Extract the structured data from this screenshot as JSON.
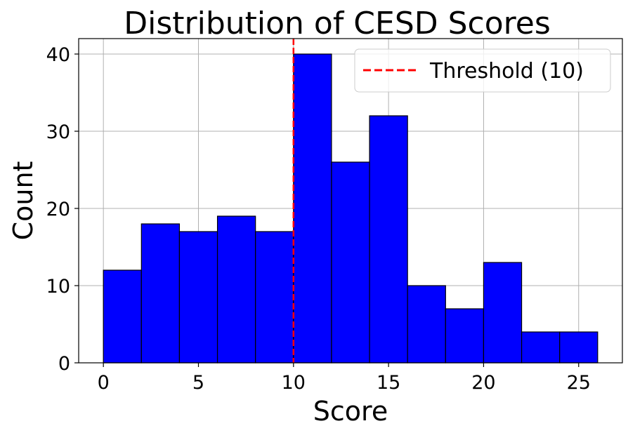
{
  "chart_data": {
    "type": "bar",
    "title": "Distribution of CESD Scores",
    "xlabel": "Score",
    "ylabel": "Count",
    "bin_edges": [
      0,
      2,
      4,
      6,
      8,
      10,
      12,
      14,
      16,
      18,
      20,
      22,
      24,
      26
    ],
    "values": [
      12,
      18,
      17,
      19,
      17,
      40,
      26,
      32,
      10,
      7,
      13,
      4,
      4
    ],
    "xlim": [
      -1.3,
      27.3
    ],
    "ylim": [
      0,
      42
    ],
    "xticks": [
      0,
      5,
      10,
      15,
      20,
      25
    ],
    "yticks": [
      0,
      10,
      20,
      30,
      40
    ],
    "bar_color": "#0000ff",
    "edge_color": "#000000",
    "grid": true,
    "threshold": {
      "value": 10,
      "label": "Threshold (10)",
      "color": "#ff0000",
      "style": "dashed"
    },
    "legend": {
      "position": "top-right",
      "entries": [
        "Threshold (10)"
      ]
    }
  }
}
